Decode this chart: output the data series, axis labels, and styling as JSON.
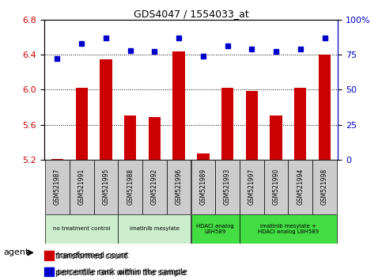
{
  "title": "GDS4047 / 1554033_at",
  "samples": [
    "GSM521987",
    "GSM521991",
    "GSM521995",
    "GSM521988",
    "GSM521992",
    "GSM521996",
    "GSM521989",
    "GSM521993",
    "GSM521997",
    "GSM521990",
    "GSM521994",
    "GSM521998"
  ],
  "bar_values": [
    5.21,
    6.02,
    6.35,
    5.7,
    5.69,
    6.44,
    5.27,
    6.02,
    5.98,
    5.7,
    6.02,
    6.4
  ],
  "dot_values": [
    72,
    83,
    87,
    78,
    77,
    87,
    74,
    81,
    79,
    77,
    79,
    87
  ],
  "ylim_left": [
    5.2,
    6.8
  ],
  "ylim_right": [
    0,
    100
  ],
  "yticks_left": [
    5.2,
    5.6,
    6.0,
    6.4,
    6.8
  ],
  "yticks_right": [
    0,
    25,
    50,
    75,
    100
  ],
  "bar_color": "#cc0000",
  "dot_color": "#0000cc",
  "groups": [
    {
      "label": "no treatment control",
      "start": 0,
      "end": 3,
      "color": "#cceecc"
    },
    {
      "label": "imatinib mesylate",
      "start": 3,
      "end": 6,
      "color": "#cceecc"
    },
    {
      "label": "HDACi analog\nLBH589",
      "start": 6,
      "end": 8,
      "color": "#44dd44"
    },
    {
      "label": "imatinib mesylate +\nHDACi analog LBH589",
      "start": 8,
      "end": 12,
      "color": "#44dd44"
    }
  ],
  "legend_bar_label": "transformed count",
  "legend_dot_label": "percentile rank within the sample",
  "agent_label": "agent",
  "bg_color": "#ffffff",
  "tick_label_color_left": "#cc0000",
  "tick_label_color_right": "#0000cc",
  "sample_box_color": "#cccccc",
  "xlim": [
    -0.55,
    11.55
  ]
}
